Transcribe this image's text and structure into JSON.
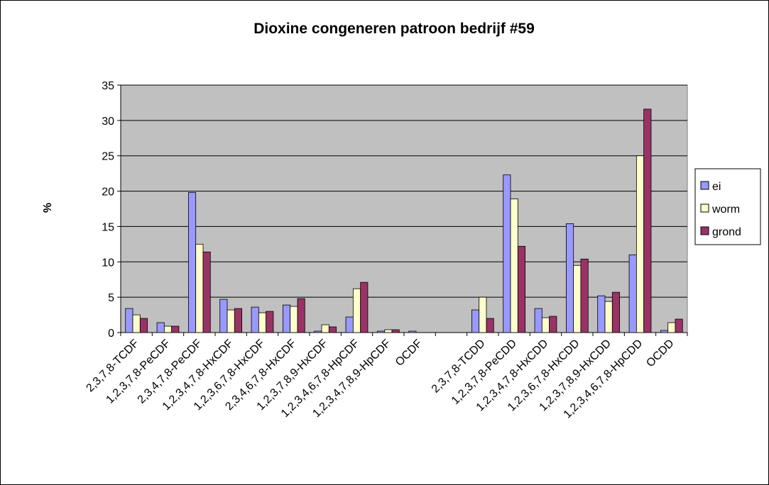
{
  "chart_data": {
    "type": "bar",
    "title": "Dioxine congeneren patroon bedrijf #59",
    "y_label": "%",
    "categories": [
      "2,3,7,8-TCDF",
      "1,2,3,7,8-PeCDF",
      "2,3,4,7,8-PeCDF",
      "1,2,3,4,7,8-HxCDF",
      "1,2,3,6,7,8-HxCDF",
      "2,3,4,6,7,8-HxCDF",
      "1,2,3,7,8,9-HxCDF",
      "1,2,3,4,6,7,8-HpCDF",
      "1,2,3,4,7,8,9-HpCDF",
      "OCDF",
      null,
      "2,3,7,8-TCDD",
      "1,2,3,7,8-PeCDD",
      "1,2,3,4,7,8-HxCDD",
      "1,2,3,6,7,8-HxCDD",
      "1,2,3,7,8,9-HxCDD",
      "1,2,3,4,6,7,8-HpCDD",
      "OCDD"
    ],
    "series": [
      {
        "name": "ei",
        "color": "#9999ff",
        "values": [
          3.4,
          1.4,
          19.8,
          4.7,
          3.6,
          3.9,
          0.2,
          2.2,
          0.2,
          0.2,
          null,
          3.2,
          22.3,
          3.4,
          15.4,
          5.2,
          11.0,
          0.3
        ]
      },
      {
        "name": "worm",
        "color": "#ffffcc",
        "values": [
          2.5,
          0.9,
          12.5,
          3.2,
          2.8,
          3.7,
          1.1,
          6.2,
          0.4,
          0,
          null,
          5.0,
          18.9,
          2.1,
          9.5,
          4.4,
          25.0,
          1.4
        ]
      },
      {
        "name": "grond",
        "color": "#993366",
        "values": [
          2.0,
          0.9,
          11.4,
          3.4,
          3.0,
          4.8,
          0.8,
          7.1,
          0.4,
          0,
          null,
          2.0,
          12.2,
          2.3,
          10.4,
          5.7,
          31.6,
          1.9
        ]
      }
    ],
    "ylim": [
      0,
      35
    ],
    "yticks": [
      0,
      5,
      10,
      15,
      20,
      25,
      30,
      35
    ],
    "grid": true,
    "legend": "right"
  }
}
